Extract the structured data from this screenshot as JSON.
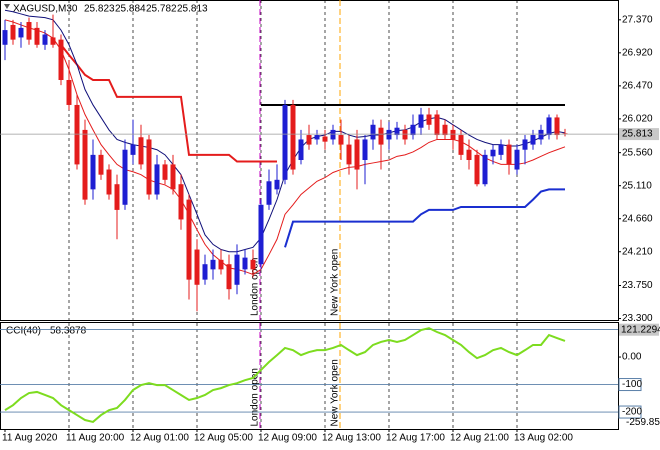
{
  "chart_data": [
    {
      "type": "candlestick",
      "symbol": "XAGUSD,M30",
      "categories": [
        "11 Aug 2020",
        null,
        null,
        null,
        null,
        null,
        null,
        null,
        "11 Aug 20:00",
        null,
        null,
        null,
        null,
        null,
        null,
        null,
        "12 Aug 01:00",
        null,
        null,
        null,
        null,
        null,
        null,
        null,
        "12 Aug 05:00",
        null,
        null,
        null,
        null,
        null,
        null,
        null,
        "12 Aug 09:00",
        null,
        null,
        null,
        null,
        null,
        null,
        null,
        "12 Aug 13:00",
        null,
        null,
        null,
        null,
        null,
        null,
        null,
        "12 Aug 17:00",
        null,
        null,
        null,
        null,
        null,
        null,
        null,
        "12 Aug 21:00",
        null,
        null,
        null,
        null,
        null,
        null,
        null,
        "13 Aug 02:00",
        null,
        null,
        null,
        null,
        null,
        null
      ],
      "open": [
        27.03,
        27.3,
        27.13,
        27.34,
        27.26,
        27.03,
        27.13,
        27.1,
        26.55,
        26.21,
        25.87,
        25.06,
        25.53,
        25.33,
        25.13,
        24.85,
        25.53,
        25.77,
        25.74,
        24.99,
        25.4,
        25.4,
        25.13,
        24.92,
        24.24,
        23.83,
        23.97,
        24.1,
        24.04,
        23.76,
        23.97,
        24.1,
        24.04,
        24.85,
        25.06,
        25.19,
        26.21,
        25.46,
        25.8,
        25.74,
        25.78,
        25.74,
        25.8,
        25.67,
        25.74,
        25.46,
        25.74,
        25.9,
        25.74,
        25.8,
        25.87,
        25.8,
        25.9,
        26.08,
        26.08,
        25.94,
        25.87,
        25.8,
        25.6,
        25.53,
        25.13,
        25.51,
        25.53,
        25.67,
        25.33,
        25.6,
        25.67,
        25.74,
        25.8,
        26.04,
        25.823
      ],
      "high": [
        27.37,
        27.37,
        27.34,
        27.4,
        27.34,
        27.23,
        27.44,
        27.17,
        26.82,
        26.35,
        26.01,
        25.74,
        25.6,
        25.4,
        25.26,
        25.74,
        26.01,
        25.94,
        25.8,
        25.53,
        25.46,
        25.53,
        25.26,
        24.99,
        24.38,
        24.17,
        24.24,
        24.24,
        24.17,
        24.31,
        24.24,
        24.24,
        24.92,
        25.33,
        25.4,
        26.28,
        26.28,
        25.87,
        25.94,
        25.87,
        25.87,
        25.94,
        26.01,
        25.8,
        25.87,
        25.8,
        26.01,
        26.01,
        25.98,
        25.98,
        25.94,
        26.08,
        26.17,
        26.17,
        26.14,
        26.01,
        25.94,
        25.87,
        25.74,
        25.6,
        25.6,
        25.67,
        25.74,
        25.74,
        25.67,
        25.8,
        25.87,
        25.94,
        26.08,
        26.08,
        25.884
      ],
      "low": [
        26.82,
        27.03,
        26.99,
        27.03,
        26.99,
        26.96,
        26.99,
        26.48,
        26.14,
        25.33,
        24.85,
        24.92,
        25.19,
        24.92,
        24.38,
        24.78,
        25.4,
        25.33,
        24.92,
        24.92,
        25.13,
        24.99,
        24.51,
        23.56,
        23.4,
        23.76,
        23.83,
        23.9,
        23.56,
        23.63,
        23.9,
        23.86,
        23.97,
        24.78,
        24.99,
        25.13,
        25.26,
        25.4,
        25.6,
        25.67,
        25.6,
        25.67,
        25.46,
        25.26,
        25.06,
        25.13,
        25.6,
        25.33,
        25.6,
        25.74,
        25.67,
        25.74,
        25.8,
        25.87,
        25.74,
        25.74,
        25.6,
        25.46,
        25.33,
        25.1,
        25.1,
        25.4,
        25.46,
        25.26,
        25.26,
        25.4,
        25.6,
        25.67,
        25.74,
        25.74,
        25.782
      ],
      "close": [
        27.23,
        27.1,
        27.26,
        27.1,
        27.03,
        27.17,
        27.03,
        26.55,
        26.21,
        25.4,
        24.92,
        25.53,
        25.26,
        24.99,
        24.78,
        25.6,
        25.67,
        25.4,
        24.99,
        25.4,
        25.19,
        25.06,
        24.65,
        23.83,
        23.76,
        24.04,
        24.1,
        23.97,
        23.7,
        24.17,
        24.13,
        23.97,
        24.85,
        25.17,
        25.19,
        26.21,
        25.33,
        25.74,
        25.67,
        25.8,
        25.71,
        25.87,
        25.67,
        25.4,
        25.33,
        25.74,
        25.94,
        25.67,
        25.87,
        25.9,
        25.74,
        25.94,
        26.08,
        25.94,
        25.8,
        25.8,
        25.74,
        25.53,
        25.46,
        25.13,
        25.53,
        25.6,
        25.67,
        25.4,
        25.6,
        25.74,
        25.8,
        25.87,
        26.04,
        25.8,
        25.813
      ],
      "up_color": "#1e1ed2",
      "down_color": "#e41c1c",
      "series": [
        {
          "color": "#000000",
          "line_width": 2,
          "values": [
            null,
            null,
            null,
            null,
            null,
            null,
            null,
            null,
            null,
            null,
            null,
            null,
            null,
            null,
            null,
            null,
            null,
            null,
            null,
            null,
            null,
            null,
            null,
            null,
            null,
            null,
            null,
            null,
            null,
            null,
            null,
            null,
            26.21,
            26.21,
            26.21,
            26.21,
            26.21,
            26.21,
            26.21,
            26.21,
            26.21,
            26.21,
            26.21,
            26.21,
            26.21,
            26.21,
            26.21,
            26.21,
            26.21,
            26.21,
            26.21,
            26.21,
            26.21,
            26.21,
            26.21,
            26.21,
            26.21,
            26.21,
            26.21,
            26.21,
            26.21,
            26.21,
            26.21,
            26.21,
            26.21,
            26.21,
            26.21,
            26.21,
            26.21,
            26.21,
            26.21
          ]
        },
        {
          "color": "#e41c1c",
          "line_width": 2,
          "values": [
            null,
            null,
            null,
            null,
            null,
            null,
            null,
            27.03,
            26.89,
            26.76,
            26.62,
            26.55,
            26.55,
            26.55,
            26.32,
            26.32,
            26.32,
            26.32,
            26.32,
            26.32,
            26.32,
            26.32,
            26.32,
            25.53,
            25.53,
            25.53,
            25.53,
            25.53,
            25.53,
            25.44,
            25.44,
            25.44,
            25.44,
            25.44,
            25.44,
            null,
            null,
            null,
            null,
            null,
            null,
            null,
            null,
            null,
            null,
            null,
            null,
            null,
            null,
            null,
            null,
            null,
            null,
            null,
            null,
            null,
            null,
            null,
            null,
            null,
            null,
            null,
            null,
            null,
            null,
            null,
            null,
            null,
            null,
            null,
            null
          ]
        },
        {
          "color": "#1a2fd0",
          "line_width": 2,
          "values": [
            null,
            null,
            null,
            null,
            null,
            null,
            null,
            null,
            null,
            null,
            null,
            null,
            null,
            null,
            null,
            null,
            null,
            null,
            null,
            null,
            null,
            null,
            null,
            null,
            null,
            null,
            null,
            null,
            null,
            null,
            null,
            null,
            null,
            null,
            null,
            24.27,
            24.62,
            24.62,
            24.62,
            24.62,
            24.62,
            24.62,
            24.62,
            24.62,
            24.62,
            24.62,
            24.62,
            24.62,
            24.62,
            24.62,
            24.62,
            24.62,
            24.72,
            24.78,
            24.78,
            24.78,
            24.78,
            24.82,
            24.82,
            24.82,
            24.82,
            24.82,
            24.82,
            24.82,
            24.82,
            24.82,
            24.92,
            25.03,
            25.06,
            25.06,
            25.06
          ]
        },
        {
          "color": "#10107a",
          "line_width": 1,
          "values": [
            27.5,
            27.48,
            27.45,
            27.42,
            27.41,
            27.4,
            27.37,
            27.23,
            27.03,
            26.76,
            26.42,
            26.21,
            26.04,
            25.87,
            25.74,
            25.7,
            25.67,
            25.65,
            25.63,
            25.6,
            25.53,
            25.4,
            25.26,
            24.99,
            24.72,
            24.44,
            24.31,
            24.24,
            24.21,
            24.21,
            24.24,
            24.27,
            24.4,
            24.65,
            24.92,
            25.26,
            25.46,
            25.63,
            25.74,
            25.78,
            25.8,
            25.85,
            25.85,
            25.8,
            25.77,
            25.78,
            25.8,
            25.8,
            25.83,
            25.86,
            25.87,
            25.91,
            25.98,
            26.02,
            26.04,
            26.01,
            25.94,
            25.87,
            25.8,
            25.74,
            25.7,
            25.67,
            25.67,
            25.65,
            25.65,
            25.68,
            25.72,
            25.77,
            25.82,
            25.85,
            25.83
          ]
        },
        {
          "color": "#e41c1c",
          "line_width": 1,
          "values": [
            27.37,
            27.34,
            27.3,
            27.26,
            27.23,
            27.19,
            27.12,
            26.96,
            26.69,
            26.35,
            26.08,
            25.87,
            25.67,
            25.53,
            25.4,
            25.33,
            25.3,
            25.26,
            25.19,
            25.15,
            25.12,
            25.06,
            24.92,
            24.72,
            24.51,
            24.31,
            24.17,
            24.08,
            23.99,
            23.97,
            23.94,
            23.9,
            23.97,
            24.17,
            24.38,
            24.72,
            24.85,
            24.99,
            25.08,
            25.17,
            25.22,
            25.29,
            25.33,
            25.36,
            25.37,
            25.4,
            25.42,
            25.44,
            25.46,
            25.51,
            25.53,
            25.57,
            25.63,
            25.7,
            25.74,
            25.74,
            25.74,
            25.71,
            25.65,
            25.57,
            25.49,
            25.44,
            25.4,
            25.4,
            25.4,
            25.42,
            25.46,
            25.51,
            25.56,
            25.6,
            25.64
          ]
        }
      ],
      "annotations": [
        {
          "text": "London open",
          "at": 32,
          "color": "#c000c0"
        },
        {
          "text": "New York open",
          "at": 42,
          "color": "#ffa500"
        }
      ],
      "ylim": [
        23.28,
        27.64
      ],
      "yticks": [
        {
          "value": 27.37,
          "label": "27.370"
        },
        {
          "value": 26.92,
          "label": "26.920"
        },
        {
          "value": 26.47,
          "label": "26.470"
        },
        {
          "value": 26.02,
          "label": "26.020"
        },
        {
          "value": 25.56,
          "label": "25.560"
        },
        {
          "value": 25.11,
          "label": "25.110"
        },
        {
          "value": 24.66,
          "label": "24.660"
        },
        {
          "value": 24.21,
          "label": "24.210"
        },
        {
          "value": 23.75,
          "label": "23.750"
        },
        {
          "value": 23.3,
          "label": "23.300"
        }
      ],
      "grid": true
    },
    {
      "type": "line",
      "title": "CCI(40)",
      "color": "#7ddc1f",
      "values": [
        -193,
        -175,
        -149,
        -131,
        -127,
        -138,
        -149,
        -175,
        -193,
        -211,
        -229,
        -236,
        -211,
        -193,
        -185,
        -156,
        -120,
        -102,
        -95,
        -102,
        -102,
        -120,
        -138,
        -156,
        -149,
        -138,
        -120,
        -113,
        -102,
        -95,
        -84,
        -76,
        -47,
        -18,
        7,
        33,
        25,
        7,
        18,
        25,
        25,
        33,
        44,
        25,
        7,
        18,
        44,
        55,
        62,
        55,
        62,
        80,
        98,
        105,
        91,
        80,
        62,
        44,
        18,
        -4,
        7,
        25,
        33,
        18,
        7,
        25,
        44,
        44,
        80,
        69,
        58.3878
      ],
      "ylim": [
        -259.852,
        121.2294
      ],
      "yticks": [
        {
          "value": 0,
          "label": "0.00"
        },
        -100,
        -200
      ],
      "levels": [
        100,
        -100,
        -200
      ],
      "level_color": "#5a7fa8"
    }
  ]
}
